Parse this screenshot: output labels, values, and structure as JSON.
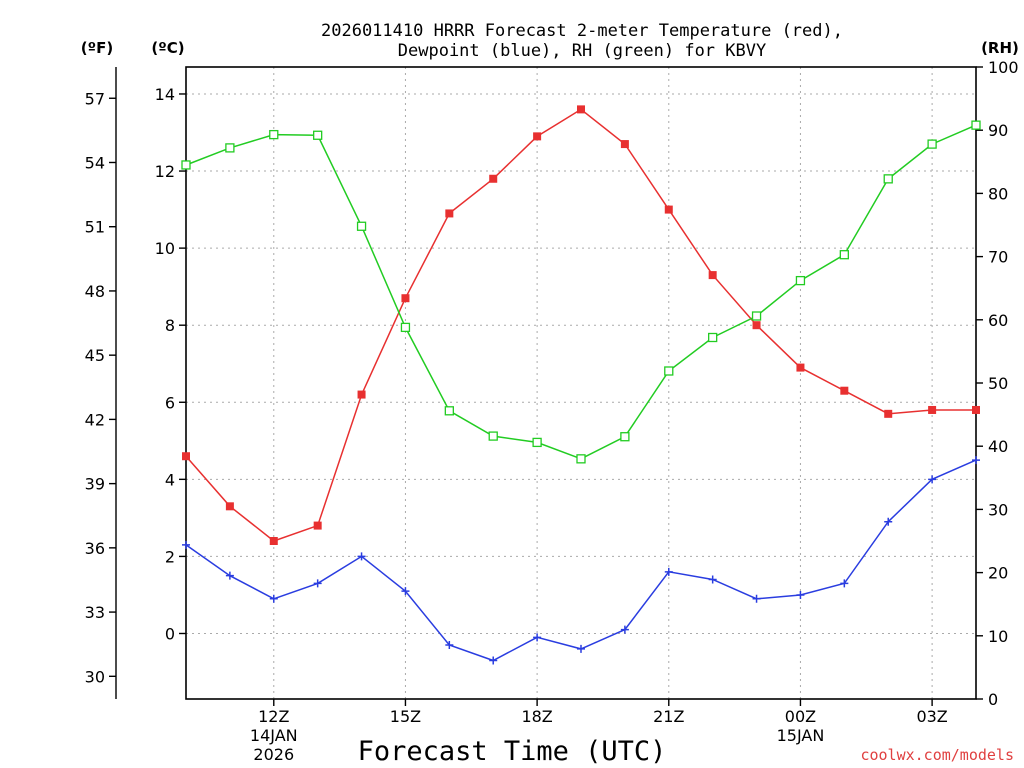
{
  "chart_data": {
    "type": "line",
    "title_line1": "2026011410 HRRR Forecast 2-meter Temperature (red),",
    "title_line2": "Dewpoint (blue), RH (green) for KBVY",
    "xlabel": "Forecast Time (UTC)",
    "credit": "coolwx.com/models",
    "left_axis_f_label": "(ºF)",
    "left_axis_c_label": "(ºC)",
    "right_axis_label": "(RH)",
    "x_hours": [
      10,
      11,
      12,
      13,
      14,
      15,
      16,
      17,
      18,
      19,
      20,
      21,
      22,
      23,
      24,
      25,
      26,
      27,
      28
    ],
    "xlim": [
      10,
      28
    ],
    "x_ticks": [
      {
        "hour": 12,
        "label": "12Z",
        "sub1": "14JAN",
        "sub2": "2026"
      },
      {
        "hour": 15,
        "label": "15Z",
        "sub1": "",
        "sub2": ""
      },
      {
        "hour": 18,
        "label": "18Z",
        "sub1": "",
        "sub2": ""
      },
      {
        "hour": 21,
        "label": "21Z",
        "sub1": "",
        "sub2": ""
      },
      {
        "hour": 24,
        "label": "00Z",
        "sub1": "15JAN",
        "sub2": ""
      },
      {
        "hour": 27,
        "label": "03Z",
        "sub1": "",
        "sub2": ""
      }
    ],
    "celsius_axis": {
      "ylim": [
        -1.7,
        14.7
      ],
      "ticks": [
        0,
        2,
        4,
        6,
        8,
        10,
        12,
        14
      ]
    },
    "fahrenheit_ticks": [
      30,
      33,
      36,
      39,
      42,
      45,
      48,
      51,
      54,
      57
    ],
    "rh_axis": {
      "ylim": [
        0,
        100
      ],
      "ticks": [
        0,
        10,
        20,
        30,
        40,
        50,
        60,
        70,
        80,
        90,
        100
      ]
    },
    "series": [
      {
        "name": "Temperature",
        "axis": "C",
        "color": "#e83030",
        "marker": "filled-square",
        "values": [
          4.6,
          3.3,
          2.4,
          2.8,
          6.2,
          8.7,
          10.9,
          11.8,
          12.9,
          13.6,
          12.7,
          11.0,
          9.3,
          8.0,
          6.9,
          6.3,
          5.7,
          5.8,
          5.8
        ]
      },
      {
        "name": "Dewpoint",
        "axis": "C",
        "color": "#2a3de0",
        "marker": "plus",
        "values": [
          2.3,
          1.5,
          0.9,
          1.3,
          2.0,
          1.1,
          -0.3,
          -0.7,
          -0.1,
          -0.4,
          0.1,
          1.6,
          1.4,
          0.9,
          1.0,
          1.3,
          2.9,
          4.0,
          4.5
        ]
      },
      {
        "name": "RH",
        "axis": "RH",
        "color": "#22cc22",
        "marker": "open-square",
        "values": [
          84.5,
          87.2,
          89.3,
          89.2,
          74.8,
          58.8,
          45.6,
          41.6,
          40.6,
          38.0,
          41.5,
          51.9,
          57.2,
          60.6,
          66.2,
          70.3,
          82.3,
          87.8,
          90.8
        ]
      }
    ]
  }
}
